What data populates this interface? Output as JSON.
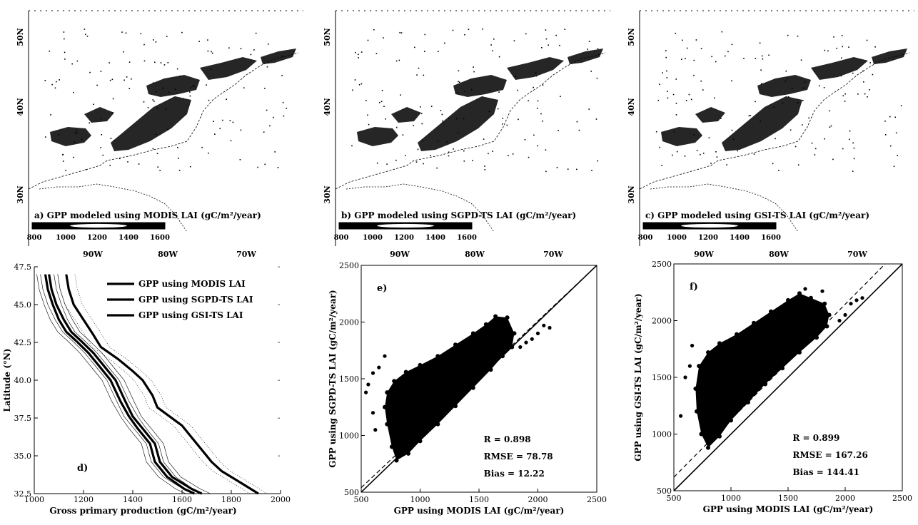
{
  "maps": [
    {
      "caption": "a) GPP modeled using MODIS LAI (gC/m²/year)",
      "colorbar_ticks": [
        "800",
        "1000",
        "1200",
        "1400",
        "1600"
      ],
      "lat_ticks": [
        "50N",
        "40N",
        "30N"
      ],
      "lon_ticks": [
        "90W",
        "80W",
        "70W"
      ]
    },
    {
      "caption": "b) GPP modeled using SGPD-TS LAI (gC/m²/year)",
      "colorbar_ticks": [
        "800",
        "1000",
        "1200",
        "1400",
        "1600"
      ],
      "lat_ticks": [
        "50N",
        "40N",
        "30N"
      ],
      "lon_ticks": [
        "90W",
        "80W",
        "70W"
      ]
    },
    {
      "caption": "c) GPP modeled using GSI-TS LAI (gC/m²/year)",
      "colorbar_ticks": [
        "800",
        "1000",
        "1200",
        "1400",
        "1600"
      ],
      "lat_ticks": [
        "50N",
        "40N",
        "30N"
      ],
      "lon_ticks": [
        "90W",
        "80W",
        "70W"
      ]
    }
  ],
  "chart_data": [
    {
      "type": "line",
      "panel_label": "d)",
      "xlabel": "Gross primary production (gC/m²/year)",
      "ylabel": "Latitude (°N)",
      "xlim": [
        1000,
        2000
      ],
      "ylim": [
        32.5,
        47.5
      ],
      "x_ticks": [
        "1000",
        "1200",
        "1400",
        "1600",
        "1800",
        "2000"
      ],
      "y_ticks": [
        "32.5",
        "35.0",
        "37.5",
        "40.0",
        "42.5",
        "45.0",
        "47.5"
      ],
      "legend_position": "top-right",
      "series": [
        {
          "name": "GPP using MODIS LAI",
          "points": [
            [
              1060,
              47.0
            ],
            [
              1070,
              46.0
            ],
            [
              1090,
              45.0
            ],
            [
              1120,
              44.0
            ],
            [
              1150,
              43.2
            ],
            [
              1190,
              42.6
            ],
            [
              1240,
              41.8
            ],
            [
              1290,
              40.8
            ],
            [
              1330,
              40.0
            ],
            [
              1370,
              38.6
            ],
            [
              1400,
              37.6
            ],
            [
              1440,
              36.8
            ],
            [
              1490,
              35.8
            ],
            [
              1510,
              34.6
            ],
            [
              1560,
              33.6
            ],
            [
              1640,
              32.8
            ],
            [
              1680,
              32.5
            ]
          ]
        },
        {
          "name": "GPP using SGPD-TS LAI",
          "points": [
            [
              1045,
              47.0
            ],
            [
              1055,
              46.0
            ],
            [
              1075,
              45.0
            ],
            [
              1100,
              44.0
            ],
            [
              1130,
              43.2
            ],
            [
              1170,
              42.6
            ],
            [
              1220,
              41.8
            ],
            [
              1270,
              40.8
            ],
            [
              1310,
              40.0
            ],
            [
              1350,
              38.6
            ],
            [
              1385,
              37.6
            ],
            [
              1420,
              36.8
            ],
            [
              1470,
              35.8
            ],
            [
              1490,
              34.6
            ],
            [
              1540,
              33.6
            ],
            [
              1610,
              32.8
            ],
            [
              1650,
              32.5
            ]
          ]
        },
        {
          "name": "GPP using GSI-TS LAI",
          "points": [
            [
              1130,
              47.0
            ],
            [
              1140,
              46.0
            ],
            [
              1160,
              45.0
            ],
            [
              1200,
              44.0
            ],
            [
              1240,
              43.0
            ],
            [
              1270,
              42.2
            ],
            [
              1340,
              41.4
            ],
            [
              1400,
              40.6
            ],
            [
              1440,
              40.0
            ],
            [
              1480,
              39.0
            ],
            [
              1500,
              38.2
            ],
            [
              1550,
              37.6
            ],
            [
              1600,
              37.0
            ],
            [
              1640,
              36.2
            ],
            [
              1680,
              35.4
            ],
            [
              1720,
              34.6
            ],
            [
              1760,
              34.0
            ],
            [
              1820,
              33.4
            ],
            [
              1880,
              32.8
            ],
            [
              1910,
              32.5
            ]
          ]
        }
      ]
    },
    {
      "type": "scatter",
      "panel_label": "e)",
      "xlabel": "GPP using MODIS LAI (gC/m²/year)",
      "ylabel": "GPP using SGPD-TS LAI (gC/m²/year)",
      "xlim": [
        500,
        2500
      ],
      "ylim": [
        500,
        2500
      ],
      "x_ticks": [
        "500",
        "1000",
        "1500",
        "2000",
        "2500"
      ],
      "y_ticks": [
        "500",
        "1000",
        "1500",
        "2000",
        "2500"
      ],
      "cloud_polygon": [
        [
          800,
          780
        ],
        [
          760,
          900
        ],
        [
          720,
          1100
        ],
        [
          700,
          1250
        ],
        [
          720,
          1380
        ],
        [
          780,
          1480
        ],
        [
          880,
          1560
        ],
        [
          1000,
          1620
        ],
        [
          1150,
          1700
        ],
        [
          1300,
          1800
        ],
        [
          1450,
          1900
        ],
        [
          1560,
          1980
        ],
        [
          1640,
          2050
        ],
        [
          1740,
          2040
        ],
        [
          1800,
          1900
        ],
        [
          1780,
          1780
        ],
        [
          1700,
          1700
        ],
        [
          1600,
          1580
        ],
        [
          1450,
          1420
        ],
        [
          1300,
          1260
        ],
        [
          1150,
          1100
        ],
        [
          1000,
          950
        ],
        [
          900,
          840
        ]
      ],
      "outlier_points": [
        [
          560,
          1450
        ],
        [
          540,
          1380
        ],
        [
          600,
          1550
        ],
        [
          650,
          1600
        ],
        [
          700,
          1700
        ],
        [
          2050,
          1970
        ],
        [
          2000,
          1900
        ],
        [
          1950,
          1850
        ],
        [
          1900,
          1820
        ],
        [
          1850,
          1780
        ],
        [
          2100,
          1950
        ],
        [
          600,
          1200
        ],
        [
          620,
          1050
        ]
      ],
      "stats": {
        "r": "R = 0.898",
        "rmse": "RMSE = 78.78",
        "bias": "Bias = 12.22"
      }
    },
    {
      "type": "scatter",
      "panel_label": "f)",
      "xlabel": "GPP using MODIS LAI (gC/m²/year)",
      "ylabel": "GPP using GSI-TS LAI (gC/m²/year)",
      "xlim": [
        500,
        2500
      ],
      "ylim": [
        500,
        2500
      ],
      "x_ticks": [
        "500",
        "1000",
        "1500",
        "2000",
        "2500"
      ],
      "y_ticks": [
        "500",
        "1000",
        "1500",
        "2000",
        "2500"
      ],
      "cloud_polygon": [
        [
          800,
          880
        ],
        [
          740,
          1000
        ],
        [
          700,
          1200
        ],
        [
          690,
          1400
        ],
        [
          720,
          1600
        ],
        [
          800,
          1720
        ],
        [
          900,
          1800
        ],
        [
          1050,
          1880
        ],
        [
          1200,
          1980
        ],
        [
          1350,
          2080
        ],
        [
          1500,
          2180
        ],
        [
          1600,
          2240
        ],
        [
          1700,
          2200
        ],
        [
          1820,
          2150
        ],
        [
          1860,
          2050
        ],
        [
          1840,
          1950
        ],
        [
          1750,
          1850
        ],
        [
          1600,
          1720
        ],
        [
          1450,
          1580
        ],
        [
          1300,
          1440
        ],
        [
          1150,
          1280
        ],
        [
          1000,
          1120
        ],
        [
          900,
          980
        ]
      ],
      "outlier_points": [
        [
          560,
          1160
        ],
        [
          600,
          1500
        ],
        [
          640,
          1600
        ],
        [
          660,
          1780
        ],
        [
          2050,
          2150
        ],
        [
          2100,
          2180
        ],
        [
          2150,
          2200
        ],
        [
          1950,
          2000
        ],
        [
          2000,
          2050
        ],
        [
          1800,
          2260
        ],
        [
          1650,
          2280
        ]
      ],
      "stats": {
        "r": "R = 0.899",
        "rmse": "RMSE = 167.26",
        "bias": "Bias = 144.41"
      }
    }
  ]
}
